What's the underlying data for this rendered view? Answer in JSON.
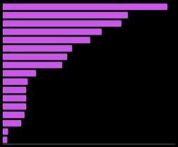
{
  "chart_data": {
    "type": "bar",
    "orientation": "horizontal",
    "categories": [
      null,
      null,
      null,
      null,
      null,
      null,
      null,
      null,
      null,
      null,
      null,
      null,
      null,
      null,
      null,
      null,
      null
    ],
    "values": [
      100,
      76,
      72,
      60,
      53,
      42,
      39,
      36,
      20,
      15,
      14,
      14,
      14,
      13,
      11,
      3,
      2.5
    ],
    "color": "#cc55ee",
    "xlim": [
      0,
      105
    ],
    "grid": false,
    "tick_labels": false
  }
}
